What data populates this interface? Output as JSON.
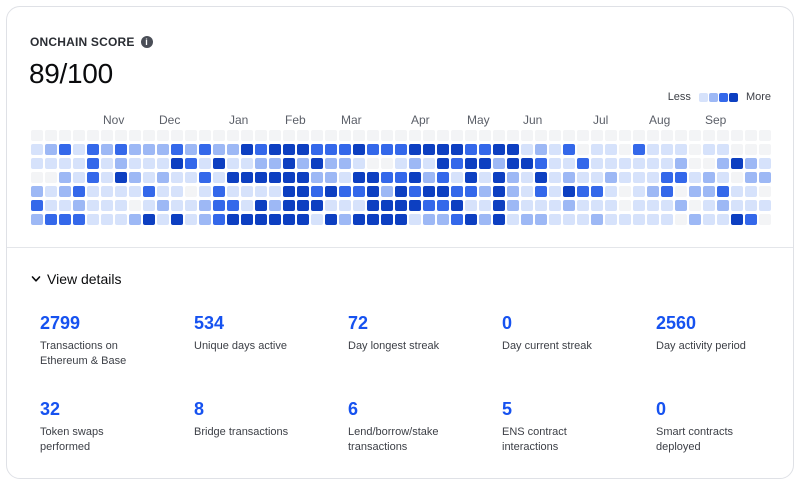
{
  "score": {
    "label": "ONCHAIN SCORE",
    "value": "89/100",
    "info_icon": "info-icon"
  },
  "legend": {
    "less": "Less",
    "more": "More",
    "colors": [
      "#f3f4f6",
      "#d6e2fb",
      "#9db8f5",
      "#3468ea",
      "#0d3fc1"
    ]
  },
  "months": [
    "Nov",
    "Dec",
    "Jan",
    "Feb",
    "Mar",
    "Apr",
    "May",
    "Jun",
    "Jul",
    "Aug",
    "Sep"
  ],
  "heatmap": {
    "weeks": 53,
    "days": 7,
    "rows": [
      "00000000000000000000000000000000000000000000000000000",
      "12313232223232243444333433344443344121301103111011000",
      "11113121114314112242422100121434424431131111112002421",
      "00213142121131444444221443342314142141211211133121022",
      "21231111311013111144343342434433242131433101230223110",
      "31121110121123314244411144443341142111211101112012111",
      "23331112414123444444142444412234241221112111110211430"
    ]
  },
  "view_details": {
    "label": "View details",
    "icon": "chevron-down-icon"
  },
  "stats": [
    {
      "value": "2799",
      "label_lines": [
        "Transactions on",
        "Ethereum & Base"
      ]
    },
    {
      "value": "534",
      "label_lines": [
        "Unique days active",
        ""
      ]
    },
    {
      "value": "72",
      "label_lines": [
        "Day longest streak",
        ""
      ]
    },
    {
      "value": "0",
      "label_lines": [
        "Day current streak",
        ""
      ]
    },
    {
      "value": "2560",
      "label_lines": [
        "Day activity period",
        ""
      ]
    },
    {
      "value": "32",
      "label_lines": [
        "Token swaps",
        "performed"
      ]
    },
    {
      "value": "8",
      "label_lines": [
        "Bridge transactions",
        ""
      ]
    },
    {
      "value": "6",
      "label_lines": [
        "Lend/borrow/stake",
        "transactions"
      ]
    },
    {
      "value": "5",
      "label_lines": [
        "ENS contract",
        "interactions"
      ]
    },
    {
      "value": "0",
      "label_lines": [
        "Smart contracts",
        "deployed"
      ]
    }
  ]
}
